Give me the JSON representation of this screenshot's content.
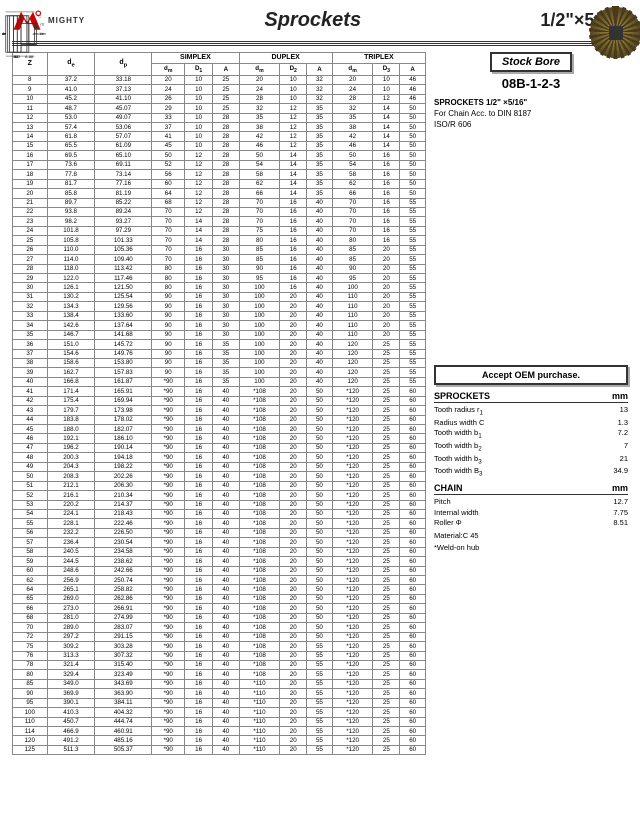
{
  "header": {
    "brand": "MIGHTY",
    "title": "Sprockets",
    "size": "1/2\"×5/16\""
  },
  "logo": {
    "color": "#cc0000"
  },
  "table": {
    "groups": [
      "SIMPLEX",
      "DUPLEX",
      "TRIPLEX"
    ],
    "cols": [
      "Z",
      "d<sub>e</sub>",
      "d<sub>p</sub>",
      "d<sub>m</sub>",
      "D<sub>1</sub>",
      "A",
      "d<sub>m</sub>",
      "D<sub>2</sub>",
      "A",
      "d<sub>m</sub>",
      "D<sub>3</sub>",
      "A"
    ],
    "rows": [
      [
        "8",
        "37.2",
        "33.18",
        "20",
        "10",
        "25",
        "20",
        "10",
        "32",
        "20",
        "10",
        "46"
      ],
      [
        "9",
        "41.0",
        "37.13",
        "24",
        "10",
        "25",
        "24",
        "10",
        "32",
        "24",
        "10",
        "46"
      ],
      [
        "10",
        "45.2",
        "41.10",
        "26",
        "10",
        "25",
        "28",
        "10",
        "32",
        "28",
        "12",
        "46"
      ],
      [
        "11",
        "48.7",
        "45.07",
        "29",
        "10",
        "25",
        "32",
        "12",
        "35",
        "32",
        "14",
        "50"
      ],
      [
        "12",
        "53.0",
        "49.07",
        "33",
        "10",
        "28",
        "35",
        "12",
        "35",
        "35",
        "14",
        "50"
      ],
      [
        "13",
        "57.4",
        "53.06",
        "37",
        "10",
        "28",
        "38",
        "12",
        "35",
        "38",
        "14",
        "50"
      ],
      [
        "14",
        "61.8",
        "57.07",
        "41",
        "10",
        "28",
        "42",
        "12",
        "35",
        "42",
        "14",
        "50"
      ],
      [
        "15",
        "65.5",
        "61.09",
        "45",
        "10",
        "28",
        "46",
        "12",
        "35",
        "46",
        "14",
        "50"
      ],
      [
        "16",
        "69.5",
        "65.10",
        "50",
        "12",
        "28",
        "50",
        "14",
        "35",
        "50",
        "16",
        "50"
      ],
      [
        "17",
        "73.6",
        "69.11",
        "52",
        "12",
        "28",
        "54",
        "14",
        "35",
        "54",
        "16",
        "50"
      ],
      [
        "18",
        "77.8",
        "73.14",
        "56",
        "12",
        "28",
        "58",
        "14",
        "35",
        "58",
        "16",
        "50"
      ],
      [
        "19",
        "81.7",
        "77.16",
        "60",
        "12",
        "28",
        "62",
        "14",
        "35",
        "62",
        "16",
        "50"
      ],
      [
        "20",
        "85.8",
        "81.19",
        "64",
        "12",
        "28",
        "66",
        "14",
        "35",
        "66",
        "16",
        "50"
      ],
      [
        "21",
        "89.7",
        "85.22",
        "68",
        "12",
        "28",
        "70",
        "16",
        "40",
        "70",
        "16",
        "55"
      ],
      [
        "22",
        "93.8",
        "89.24",
        "70",
        "12",
        "28",
        "70",
        "16",
        "40",
        "70",
        "16",
        "55"
      ],
      [
        "23",
        "98.2",
        "93.27",
        "70",
        "14",
        "28",
        "70",
        "16",
        "40",
        "70",
        "16",
        "55"
      ],
      [
        "24",
        "101.8",
        "97.29",
        "70",
        "14",
        "28",
        "75",
        "16",
        "40",
        "70",
        "16",
        "55"
      ],
      [
        "25",
        "105.8",
        "101.33",
        "70",
        "14",
        "28",
        "80",
        "16",
        "40",
        "80",
        "16",
        "55"
      ],
      [
        "26",
        "110.0",
        "105.36",
        "70",
        "16",
        "30",
        "85",
        "16",
        "40",
        "85",
        "20",
        "55"
      ],
      [
        "27",
        "114.0",
        "109.40",
        "70",
        "16",
        "30",
        "85",
        "16",
        "40",
        "85",
        "20",
        "55"
      ],
      [
        "28",
        "118.0",
        "113.42",
        "80",
        "16",
        "30",
        "90",
        "16",
        "40",
        "90",
        "20",
        "55"
      ],
      [
        "29",
        "122.0",
        "117.46",
        "80",
        "16",
        "30",
        "95",
        "16",
        "40",
        "95",
        "20",
        "55"
      ],
      [
        "30",
        "126.1",
        "121.50",
        "80",
        "16",
        "30",
        "100",
        "16",
        "40",
        "100",
        "20",
        "55"
      ],
      [
        "31",
        "130.2",
        "125.54",
        "90",
        "16",
        "30",
        "100",
        "20",
        "40",
        "110",
        "20",
        "55"
      ],
      [
        "32",
        "134.3",
        "129.56",
        "90",
        "16",
        "30",
        "100",
        "20",
        "40",
        "110",
        "20",
        "55"
      ],
      [
        "33",
        "138.4",
        "133.60",
        "90",
        "16",
        "30",
        "100",
        "20",
        "40",
        "110",
        "20",
        "55"
      ],
      [
        "34",
        "142.6",
        "137.64",
        "90",
        "16",
        "30",
        "100",
        "20",
        "40",
        "110",
        "20",
        "55"
      ],
      [
        "35",
        "146.7",
        "141.68",
        "90",
        "16",
        "30",
        "100",
        "20",
        "40",
        "110",
        "20",
        "55"
      ],
      [
        "36",
        "151.0",
        "145.72",
        "90",
        "16",
        "35",
        "100",
        "20",
        "40",
        "120",
        "25",
        "55"
      ],
      [
        "37",
        "154.6",
        "149.76",
        "90",
        "16",
        "35",
        "100",
        "20",
        "40",
        "120",
        "25",
        "55"
      ],
      [
        "38",
        "158.6",
        "153.80",
        "90",
        "16",
        "35",
        "100",
        "20",
        "40",
        "120",
        "25",
        "55"
      ],
      [
        "39",
        "162.7",
        "157.83",
        "90",
        "16",
        "35",
        "100",
        "20",
        "40",
        "120",
        "25",
        "55"
      ],
      [
        "40",
        "166.8",
        "161.87",
        "*90",
        "16",
        "35",
        "100",
        "20",
        "40",
        "120",
        "25",
        "55"
      ],
      [
        "41",
        "171.4",
        "165.91",
        "*90",
        "16",
        "40",
        "*108",
        "20",
        "50",
        "*120",
        "25",
        "60"
      ],
      [
        "42",
        "175.4",
        "169.94",
        "*90",
        "16",
        "40",
        "*108",
        "20",
        "50",
        "*120",
        "25",
        "60"
      ],
      [
        "43",
        "179.7",
        "173.98",
        "*90",
        "16",
        "40",
        "*108",
        "20",
        "50",
        "*120",
        "25",
        "60"
      ],
      [
        "44",
        "183.8",
        "178.02",
        "*90",
        "16",
        "40",
        "*108",
        "20",
        "50",
        "*120",
        "25",
        "60"
      ],
      [
        "45",
        "188.0",
        "182.07",
        "*90",
        "16",
        "40",
        "*108",
        "20",
        "50",
        "*120",
        "25",
        "60"
      ],
      [
        "46",
        "192.1",
        "186.10",
        "*90",
        "16",
        "40",
        "*108",
        "20",
        "50",
        "*120",
        "25",
        "60"
      ],
      [
        "47",
        "196.2",
        "190.14",
        "*90",
        "16",
        "40",
        "*108",
        "20",
        "50",
        "*120",
        "25",
        "60"
      ],
      [
        "48",
        "200.3",
        "194.18",
        "*90",
        "16",
        "40",
        "*108",
        "20",
        "50",
        "*120",
        "25",
        "60"
      ],
      [
        "49",
        "204.3",
        "198.22",
        "*90",
        "16",
        "40",
        "*108",
        "20",
        "50",
        "*120",
        "25",
        "60"
      ],
      [
        "50",
        "208.3",
        "202.26",
        "*90",
        "16",
        "40",
        "*108",
        "20",
        "50",
        "*120",
        "25",
        "60"
      ],
      [
        "51",
        "212.1",
        "206.30",
        "*90",
        "16",
        "40",
        "*108",
        "20",
        "50",
        "*120",
        "25",
        "60"
      ],
      [
        "52",
        "216.1",
        "210.34",
        "*90",
        "16",
        "40",
        "*108",
        "20",
        "50",
        "*120",
        "25",
        "60"
      ],
      [
        "53",
        "220.2",
        "214.37",
        "*90",
        "16",
        "40",
        "*108",
        "20",
        "50",
        "*120",
        "25",
        "60"
      ],
      [
        "54",
        "224.1",
        "218.43",
        "*90",
        "16",
        "40",
        "*108",
        "20",
        "50",
        "*120",
        "25",
        "60"
      ],
      [
        "55",
        "228.1",
        "222.46",
        "*90",
        "16",
        "40",
        "*108",
        "20",
        "50",
        "*120",
        "25",
        "60"
      ],
      [
        "56",
        "232.2",
        "226.50",
        "*90",
        "16",
        "40",
        "*108",
        "20",
        "50",
        "*120",
        "25",
        "60"
      ],
      [
        "57",
        "236.4",
        "230.54",
        "*90",
        "16",
        "40",
        "*108",
        "20",
        "50",
        "*120",
        "25",
        "60"
      ],
      [
        "58",
        "240.5",
        "234.58",
        "*90",
        "16",
        "40",
        "*108",
        "20",
        "50",
        "*120",
        "25",
        "60"
      ],
      [
        "59",
        "244.5",
        "238.62",
        "*90",
        "16",
        "40",
        "*108",
        "20",
        "50",
        "*120",
        "25",
        "60"
      ],
      [
        "60",
        "248.6",
        "242.66",
        "*90",
        "16",
        "40",
        "*108",
        "20",
        "50",
        "*120",
        "25",
        "60"
      ],
      [
        "62",
        "256.9",
        "250.74",
        "*90",
        "16",
        "40",
        "*108",
        "20",
        "50",
        "*120",
        "25",
        "60"
      ],
      [
        "64",
        "265.1",
        "258.82",
        "*90",
        "16",
        "40",
        "*108",
        "20",
        "50",
        "*120",
        "25",
        "60"
      ],
      [
        "65",
        "269.0",
        "262.86",
        "*90",
        "16",
        "40",
        "*108",
        "20",
        "50",
        "*120",
        "25",
        "60"
      ],
      [
        "66",
        "273.0",
        "266.91",
        "*90",
        "16",
        "40",
        "*108",
        "20",
        "50",
        "*120",
        "25",
        "60"
      ],
      [
        "68",
        "281.0",
        "274.99",
        "*90",
        "16",
        "40",
        "*108",
        "20",
        "50",
        "*120",
        "25",
        "60"
      ],
      [
        "70",
        "289.0",
        "283.07",
        "*90",
        "16",
        "40",
        "*108",
        "20",
        "50",
        "*120",
        "25",
        "60"
      ],
      [
        "72",
        "297.2",
        "291.15",
        "*90",
        "16",
        "40",
        "*108",
        "20",
        "50",
        "*120",
        "25",
        "60"
      ],
      [
        "75",
        "309.2",
        "303.28",
        "*90",
        "16",
        "40",
        "*108",
        "20",
        "55",
        "*120",
        "25",
        "60"
      ],
      [
        "76",
        "313.3",
        "307.32",
        "*90",
        "16",
        "40",
        "*108",
        "20",
        "55",
        "*120",
        "25",
        "60"
      ],
      [
        "78",
        "321.4",
        "315.40",
        "*90",
        "16",
        "40",
        "*108",
        "20",
        "55",
        "*120",
        "25",
        "60"
      ],
      [
        "80",
        "329.4",
        "323.49",
        "*90",
        "16",
        "40",
        "*108",
        "20",
        "55",
        "*120",
        "25",
        "60"
      ],
      [
        "85",
        "349.0",
        "343.69",
        "*90",
        "16",
        "40",
        "*110",
        "20",
        "55",
        "*120",
        "25",
        "60"
      ],
      [
        "90",
        "369.9",
        "363.90",
        "*90",
        "16",
        "40",
        "*110",
        "20",
        "55",
        "*120",
        "25",
        "60"
      ],
      [
        "95",
        "390.1",
        "384.11",
        "*90",
        "16",
        "40",
        "*110",
        "20",
        "55",
        "*120",
        "25",
        "60"
      ],
      [
        "100",
        "410.3",
        "404.32",
        "*90",
        "16",
        "40",
        "*110",
        "20",
        "55",
        "*120",
        "25",
        "60"
      ],
      [
        "110",
        "450.7",
        "444.74",
        "*90",
        "16",
        "40",
        "*110",
        "20",
        "55",
        "*120",
        "25",
        "60"
      ],
      [
        "114",
        "466.9",
        "460.91",
        "*90",
        "16",
        "40",
        "*110",
        "20",
        "55",
        "*120",
        "25",
        "60"
      ],
      [
        "120",
        "491.2",
        "485.16",
        "*90",
        "16",
        "40",
        "*110",
        "20",
        "55",
        "*120",
        "25",
        "60"
      ],
      [
        "125",
        "511.3",
        "505.37",
        "*90",
        "16",
        "40",
        "*110",
        "20",
        "55",
        "*120",
        "25",
        "60"
      ]
    ]
  },
  "right": {
    "stockbore": "Stock Bore",
    "model": "08B-1-2-3",
    "desc": "SPROCKETS 1/2\" ×5/16\"",
    "chain": "For Chain Acc. to DIN 8187",
    "iso": "ISO/R 606",
    "oem": "Accept OEM purchase.",
    "sprockets_title": "SPROCKETS",
    "unit": "mm",
    "sprockets": [
      [
        "Tooth radius r<sub>1</sub>",
        "13"
      ],
      [
        "Radius width C",
        "1.3"
      ],
      [
        "Tooth width b<sub>1</sub>",
        "7.2"
      ],
      [
        "Tooth width b<sub>2</sub>",
        "7"
      ],
      [
        "Tooth width b<sub>3</sub>",
        "21"
      ],
      [
        "Tooth width B<sub>3</sub>",
        "34.9"
      ]
    ],
    "chain_title": "CHAIN",
    "chainspec": [
      [
        "Pitch",
        "12.7"
      ],
      [
        "Internal width",
        "7.75"
      ],
      [
        "Roller Φ",
        "8.51"
      ]
    ],
    "material": "Material:C 45",
    "weld": "*Weld-on hub"
  }
}
